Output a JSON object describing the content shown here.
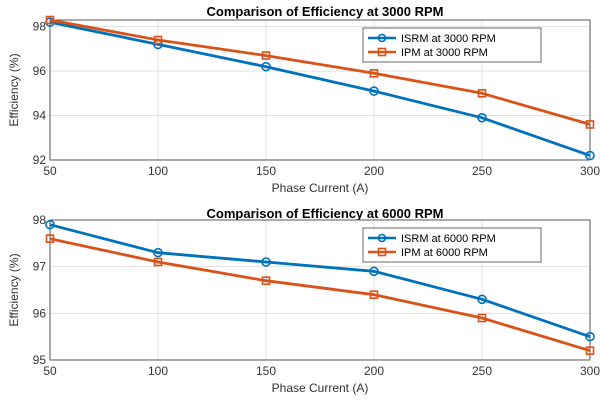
{
  "chart_data": [
    {
      "type": "line",
      "title": "Comparison of Efficiency at 3000 RPM",
      "xlabel": "Phase Current (A)",
      "ylabel": "Efficiency (%)",
      "x": [
        50,
        100,
        150,
        200,
        250,
        300
      ],
      "xticks": [
        "50",
        "100",
        "150",
        "200",
        "250",
        "300"
      ],
      "yticks": [
        "92",
        "94",
        "96",
        "98"
      ],
      "xlim": [
        50,
        300
      ],
      "ylim": [
        92,
        98.3
      ],
      "grid": true,
      "legend_position": "top-right",
      "series": [
        {
          "name": "ISRM at 3000 RPM",
          "values": [
            98.2,
            97.2,
            96.2,
            95.1,
            93.9,
            92.2
          ],
          "color": "#0072BD",
          "marker": "circle"
        },
        {
          "name": "IPM at 3000 RPM",
          "values": [
            98.3,
            97.4,
            96.7,
            95.9,
            95.0,
            93.6
          ],
          "color": "#D95319",
          "marker": "square"
        }
      ]
    },
    {
      "type": "line",
      "title": "Comparison of Efficiency at 6000 RPM",
      "xlabel": "Phase Current (A)",
      "ylabel": "Efficiency (%)",
      "x": [
        50,
        100,
        150,
        200,
        250,
        300
      ],
      "xticks": [
        "50",
        "100",
        "150",
        "200",
        "250",
        "300"
      ],
      "yticks": [
        "95",
        "96",
        "97",
        "98"
      ],
      "xlim": [
        50,
        300
      ],
      "ylim": [
        95,
        98
      ],
      "grid": true,
      "legend_position": "top-right",
      "series": [
        {
          "name": "ISRM at 6000 RPM",
          "values": [
            97.9,
            97.3,
            97.1,
            96.9,
            96.3,
            95.5
          ],
          "color": "#0072BD",
          "marker": "circle"
        },
        {
          "name": "IPM at 6000 RPM",
          "values": [
            97.6,
            97.1,
            96.7,
            96.4,
            95.9,
            95.2
          ],
          "color": "#D95319",
          "marker": "square"
        }
      ]
    }
  ]
}
